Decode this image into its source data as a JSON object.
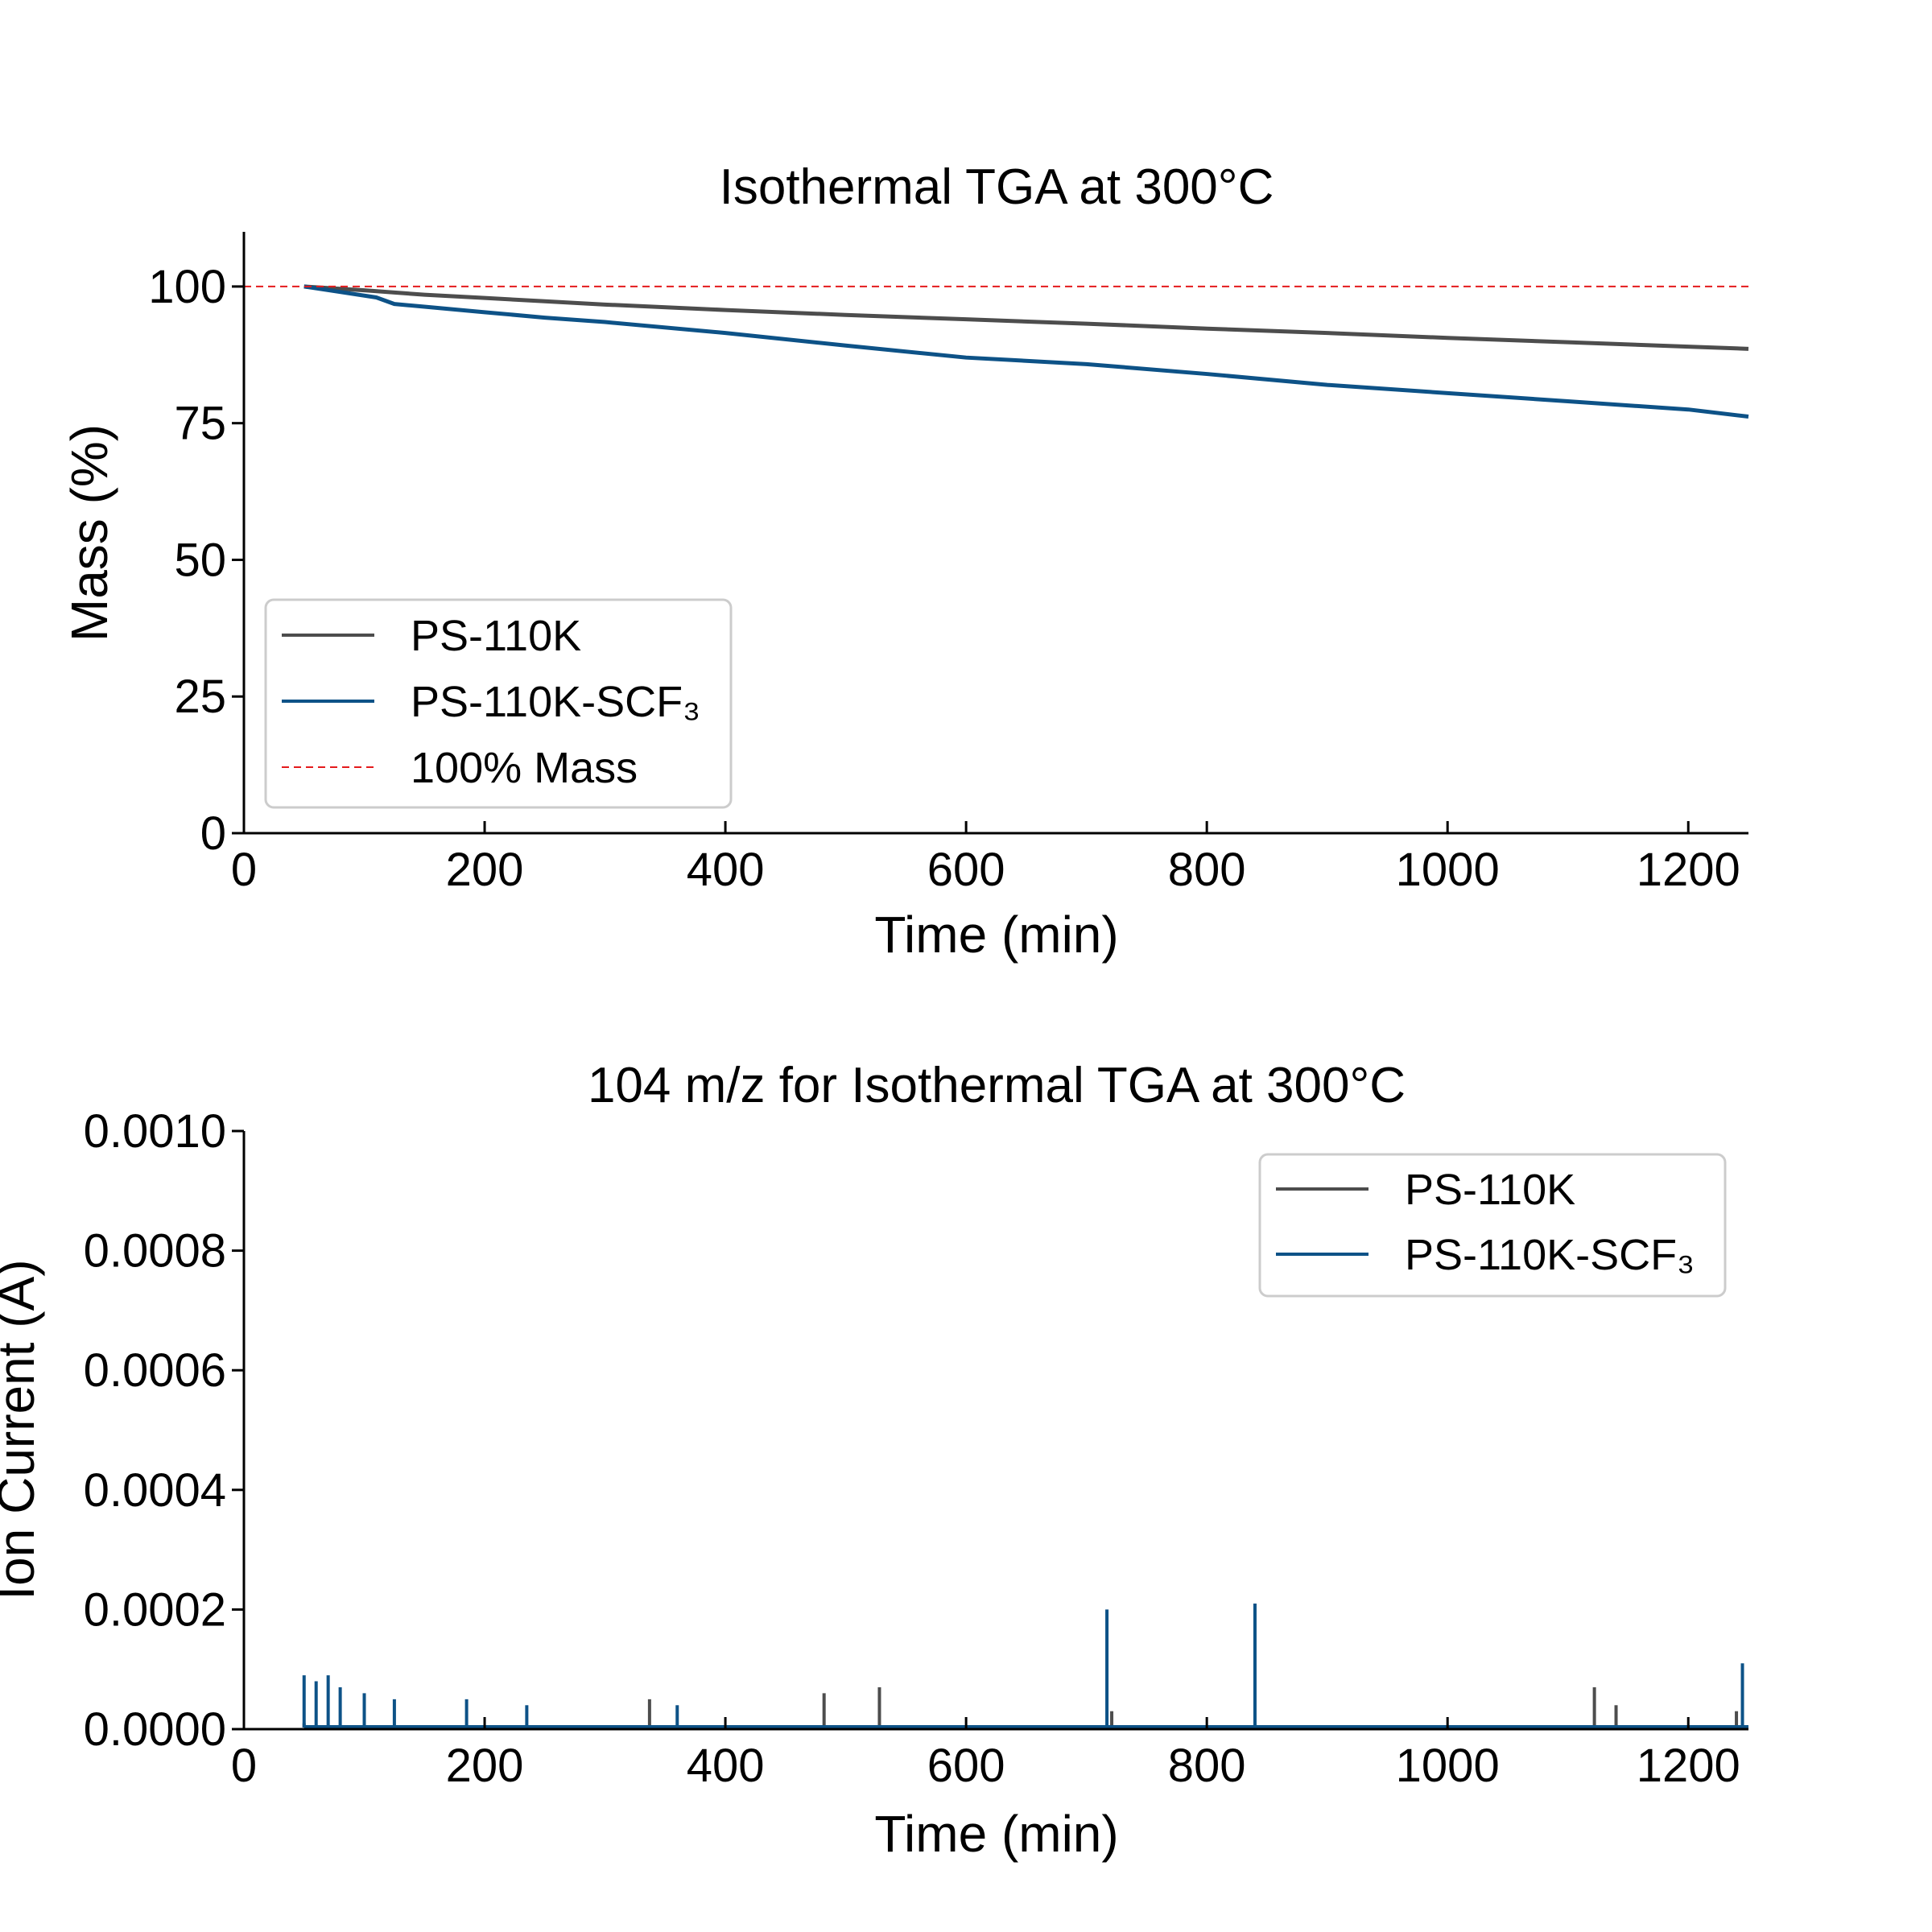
{
  "chart_data": [
    {
      "type": "line",
      "title": "Isothermal TGA at 300°C",
      "xlabel": "Time (min)",
      "ylabel": "Mass (%)",
      "xlim": [
        0,
        1250
      ],
      "ylim": [
        0,
        110
      ],
      "xticks": [
        0,
        200,
        400,
        600,
        800,
        1000,
        1200
      ],
      "yticks": [
        0,
        25,
        50,
        75,
        100
      ],
      "legend_position": "lower-left",
      "series": [
        {
          "name": "PS-110K",
          "color": "#4d4d4d",
          "x": [
            50,
            100,
            150,
            200,
            250,
            300,
            400,
            500,
            600,
            700,
            800,
            900,
            1000,
            1100,
            1200,
            1250
          ],
          "y": [
            100,
            99.3,
            98.5,
            97.9,
            97.3,
            96.7,
            95.7,
            94.8,
            94.0,
            93.2,
            92.3,
            91.5,
            90.6,
            89.8,
            89.0,
            88.6
          ]
        },
        {
          "name": "PS-110K-SCF₃",
          "color": "#0d5287",
          "x": [
            50,
            80,
            110,
            125,
            150,
            200,
            250,
            300,
            400,
            500,
            600,
            700,
            800,
            900,
            1000,
            1100,
            1200,
            1250
          ],
          "y": [
            100,
            99.0,
            98.0,
            96.8,
            96.3,
            95.3,
            94.3,
            93.5,
            91.5,
            89.2,
            87.0,
            85.8,
            84.0,
            82.0,
            80.5,
            79.0,
            77.5,
            76.2
          ]
        },
        {
          "name": "100% Mass",
          "color": "#e41a1c",
          "dashed": true,
          "x": [
            0,
            1250
          ],
          "y": [
            100,
            100
          ]
        }
      ]
    },
    {
      "type": "line",
      "title": "104 m/z for Isothermal TGA at 300°C",
      "xlabel": "Time (min)",
      "ylabel": "Ion Current (A)",
      "xlim": [
        0,
        1250
      ],
      "ylim": [
        0,
        0.001
      ],
      "xticks": [
        0,
        200,
        400,
        600,
        800,
        1000,
        1200
      ],
      "yticks": [
        "0.0000",
        "0.0002",
        "0.0004",
        "0.0006",
        "0.0008",
        "0.0010"
      ],
      "legend_position": "upper-right",
      "series": [
        {
          "name": "PS-110K",
          "color": "#4d4d4d",
          "x": [
            50,
            337,
            482,
            528,
            721,
            1122,
            1140,
            1240
          ],
          "y": [
            1e-05,
            5e-05,
            6e-05,
            7e-05,
            3e-05,
            7e-05,
            4e-05,
            3e-05
          ]
        },
        {
          "name": "PS-110K-SCF₃",
          "color": "#0d5287",
          "x": [
            50,
            60,
            70,
            80,
            100,
            125,
            185,
            235,
            360,
            717,
            840,
            1245
          ],
          "y": [
            9e-05,
            8e-05,
            9e-05,
            7e-05,
            6e-05,
            5e-05,
            5e-05,
            4e-05,
            4e-05,
            0.0002,
            0.00021,
            0.00011
          ]
        }
      ]
    }
  ]
}
